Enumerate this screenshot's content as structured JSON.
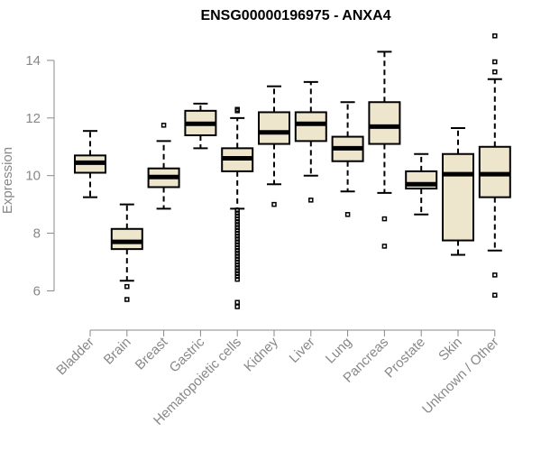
{
  "chart_data": {
    "type": "boxplot",
    "title": "ENSG00000196975 - ANXA4",
    "xlabel": "",
    "ylabel": "Expression",
    "ylim": [
      5.2,
      15.0
    ],
    "yticks": [
      6,
      8,
      10,
      12,
      14
    ],
    "colors": {
      "box_fill": "#ede6cc",
      "stroke": "#000000",
      "axis_text": "#888888"
    },
    "categories": [
      "Bladder",
      "Brain",
      "Breast",
      "Gastric",
      "Hematopoietic cells",
      "Kidney",
      "Liver",
      "Lung",
      "Pancreas",
      "Prostate",
      "Skin",
      "Unknown / Other"
    ],
    "boxes": [
      {
        "name": "Bladder",
        "whisker_low": 9.25,
        "q1": 10.1,
        "median": 10.45,
        "q3": 10.7,
        "whisker_high": 11.55,
        "outliers": []
      },
      {
        "name": "Brain",
        "whisker_low": 6.35,
        "q1": 7.45,
        "median": 7.7,
        "q3": 8.15,
        "whisker_high": 9.0,
        "outliers": [
          6.15,
          5.7
        ]
      },
      {
        "name": "Breast",
        "whisker_low": 8.85,
        "q1": 9.6,
        "median": 9.95,
        "q3": 10.25,
        "whisker_high": 11.2,
        "outliers": [
          11.75
        ]
      },
      {
        "name": "Gastric",
        "whisker_low": 10.95,
        "q1": 11.4,
        "median": 11.8,
        "q3": 12.25,
        "whisker_high": 12.5,
        "outliers": []
      },
      {
        "name": "Hematopoietic cells",
        "whisker_low": 8.85,
        "q1": 10.15,
        "median": 10.6,
        "q3": 10.95,
        "whisker_high": 12.0,
        "outliers": [
          12.3,
          12.25,
          8.8,
          8.7,
          8.6,
          8.5,
          8.4,
          8.3,
          8.2,
          8.1,
          8.0,
          7.9,
          7.8,
          7.7,
          7.6,
          7.5,
          7.4,
          7.3,
          7.2,
          7.1,
          7.0,
          6.9,
          6.8,
          6.7,
          6.6,
          6.5,
          6.4,
          5.6,
          5.45
        ]
      },
      {
        "name": "Kidney",
        "whisker_low": 9.7,
        "q1": 11.1,
        "median": 11.5,
        "q3": 12.2,
        "whisker_high": 13.1,
        "outliers": [
          9.0
        ]
      },
      {
        "name": "Liver",
        "whisker_low": 10.0,
        "q1": 11.2,
        "median": 11.8,
        "q3": 12.2,
        "whisker_high": 13.25,
        "outliers": [
          9.15
        ]
      },
      {
        "name": "Lung",
        "whisker_low": 9.45,
        "q1": 10.5,
        "median": 10.95,
        "q3": 11.35,
        "whisker_high": 12.55,
        "outliers": [
          8.65
        ]
      },
      {
        "name": "Pancreas",
        "whisker_low": 9.4,
        "q1": 11.1,
        "median": 11.7,
        "q3": 12.55,
        "whisker_high": 14.3,
        "outliers": [
          8.5,
          7.55
        ]
      },
      {
        "name": "Prostate",
        "whisker_low": 8.65,
        "q1": 9.55,
        "median": 9.7,
        "q3": 10.15,
        "whisker_high": 10.75,
        "outliers": []
      },
      {
        "name": "Skin",
        "whisker_low": 7.25,
        "q1": 7.75,
        "median": 10.05,
        "q3": 10.75,
        "whisker_high": 11.65,
        "outliers": []
      },
      {
        "name": "Unknown / Other",
        "whisker_low": 7.4,
        "q1": 9.25,
        "median": 10.05,
        "q3": 11.0,
        "whisker_high": 13.35,
        "outliers": [
          14.85,
          13.95,
          13.6,
          6.55,
          5.85
        ]
      }
    ]
  }
}
